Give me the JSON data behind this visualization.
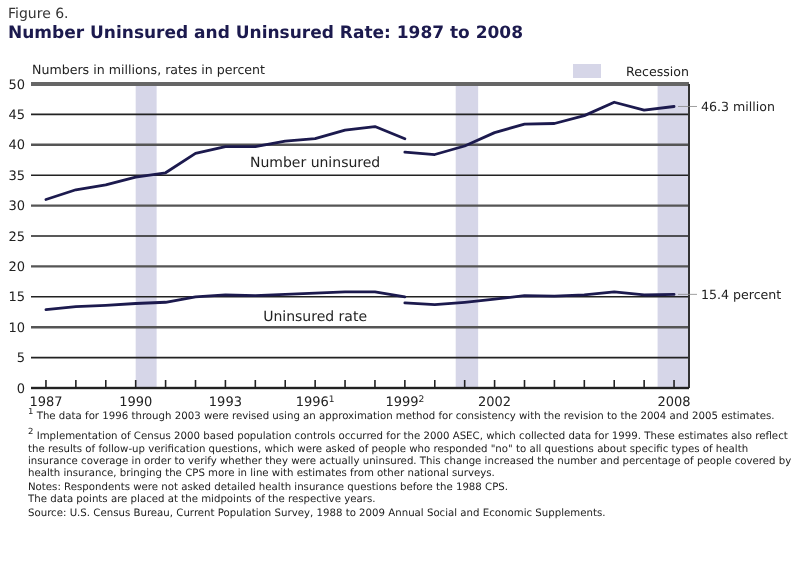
{
  "chart_data": {
    "type": "line",
    "title": "Number Uninsured and Uninsured Rate: 1987 to 2008",
    "subtitle": "Figure 6.",
    "ylabel": "Numbers in millions, rates in percent",
    "series": [
      {
        "name": "Number uninsured",
        "color": "#1c1a4e",
        "x": [
          1987.5,
          1988.5,
          1989.5,
          1990.5,
          1991.5,
          1992.5,
          1993.5,
          1994.5,
          1995.5,
          1996.5,
          1997.5,
          1998.5,
          1999.5
        ],
        "values": [
          31.0,
          32.6,
          33.4,
          34.7,
          35.4,
          38.6,
          39.7,
          39.7,
          40.6,
          41.0,
          42.4,
          43.0,
          41.0
        ]
      },
      {
        "color": "#1c1a4e",
        "x": [
          1999.5,
          2000.5,
          2001.5,
          2002.5,
          2003.5,
          2004.5,
          2005.5,
          2006.5,
          2007.5,
          2008.5
        ],
        "values": [
          38.8,
          38.4,
          39.8,
          42.0,
          43.4,
          43.5,
          44.8,
          47.0,
          45.7,
          46.3
        ]
      },
      {
        "name": "Uninsured rate",
        "color": "#1c1a4e",
        "x": [
          1987.5,
          1988.5,
          1989.5,
          1990.5,
          1991.5,
          1992.5,
          1993.5,
          1994.5,
          1995.5,
          1996.5,
          1997.5,
          1998.5,
          1999.5
        ],
        "values": [
          12.9,
          13.4,
          13.6,
          13.9,
          14.1,
          15.0,
          15.3,
          15.2,
          15.4,
          15.6,
          15.8,
          15.8,
          15.0
        ]
      },
      {
        "color": "#1c1a4e",
        "x": [
          1999.5,
          2000.5,
          2001.5,
          2002.5,
          2003.5,
          2004.5,
          2005.5,
          2006.5,
          2007.5,
          2008.5
        ],
        "values": [
          14.0,
          13.7,
          14.1,
          14.6,
          15.2,
          15.1,
          15.3,
          15.8,
          15.3,
          15.4
        ]
      }
    ],
    "xlim": [
      1987,
      2009
    ],
    "xticks": [
      {
        "value": 1987.5,
        "label": "1987"
      },
      {
        "value": 1988.5,
        "label": null
      },
      {
        "value": 1989.5,
        "label": null
      },
      {
        "value": 1990.5,
        "label": "1990"
      },
      {
        "value": 1991.5,
        "label": null
      },
      {
        "value": 1992.5,
        "label": null
      },
      {
        "value": 1993.5,
        "label": "1993"
      },
      {
        "value": 1994.5,
        "label": null
      },
      {
        "value": 1995.5,
        "label": null
      },
      {
        "value": 1996.5,
        "label": "1996$^{1}$"
      },
      {
        "value": 1997.5,
        "label": null
      },
      {
        "value": 1998.5,
        "label": null
      },
      {
        "value": 1999.5,
        "label": "1999$^{2}$"
      },
      {
        "value": 2000.5,
        "label": null
      },
      {
        "value": 2001.5,
        "label": null
      },
      {
        "value": 2002.5,
        "label": "2002"
      },
      {
        "value": 2003.5,
        "label": null
      },
      {
        "value": 2004.5,
        "label": null
      },
      {
        "value": 2005.5,
        "label": null
      },
      {
        "value": 2006.5,
        "label": null
      },
      {
        "value": 2007.5,
        "label": null
      },
      {
        "value": 2008.5,
        "label": "2008"
      }
    ],
    "ylim": [
      0,
      50
    ],
    "yticks": [
      0,
      5,
      10,
      15,
      20,
      25,
      30,
      35,
      40,
      45,
      50
    ],
    "grid": "y",
    "legend": "top right",
    "bands": [
      {
        "axis": "x",
        "from": 1990.5,
        "to": 1991.2,
        "label": "Recession",
        "color": "#d6d6e8"
      },
      {
        "axis": "x",
        "from": 2001.2,
        "to": 2001.95,
        "color": "#d6d6e8"
      },
      {
        "axis": "x",
        "from": 2007.95,
        "to": 2009,
        "color": "#d6d6e8"
      }
    ],
    "annotations": [
      {
        "text": "46.3 million",
        "x": 2008.5,
        "y": 46.3
      },
      {
        "text": "15.4 percent",
        "x": 2008.5,
        "y": 15.4
      },
      "$^{1}$ The data for 1996 through 2003 were revised using an approximation method for consistency with the revision to the 2004 and 2005 estimates.",
      "$^{2}$ Implementation of Census 2000 based population controls occurred for the 2000 ASEC, which collected data for 1999.  These estimates also reflect the results of follow-up verification questions, which were asked of people who responded \"no\" to all questions about specific types of health insurance coverage in order to verify whether they were actually uninsured.  This change increased the number and percentage of people covered by health insurance, bringing the CPS more in line with estimates from other national surveys.",
      "Notes: Respondents were not asked detailed health insurance questions before the 1988 CPS.\nThe data points are placed at the midpoints of the respective years.",
      "Source: U.S. Census Bureau, Current Population Survey, 1988 to 2009 Annual Social and Economic Supplements."
    ]
  }
}
